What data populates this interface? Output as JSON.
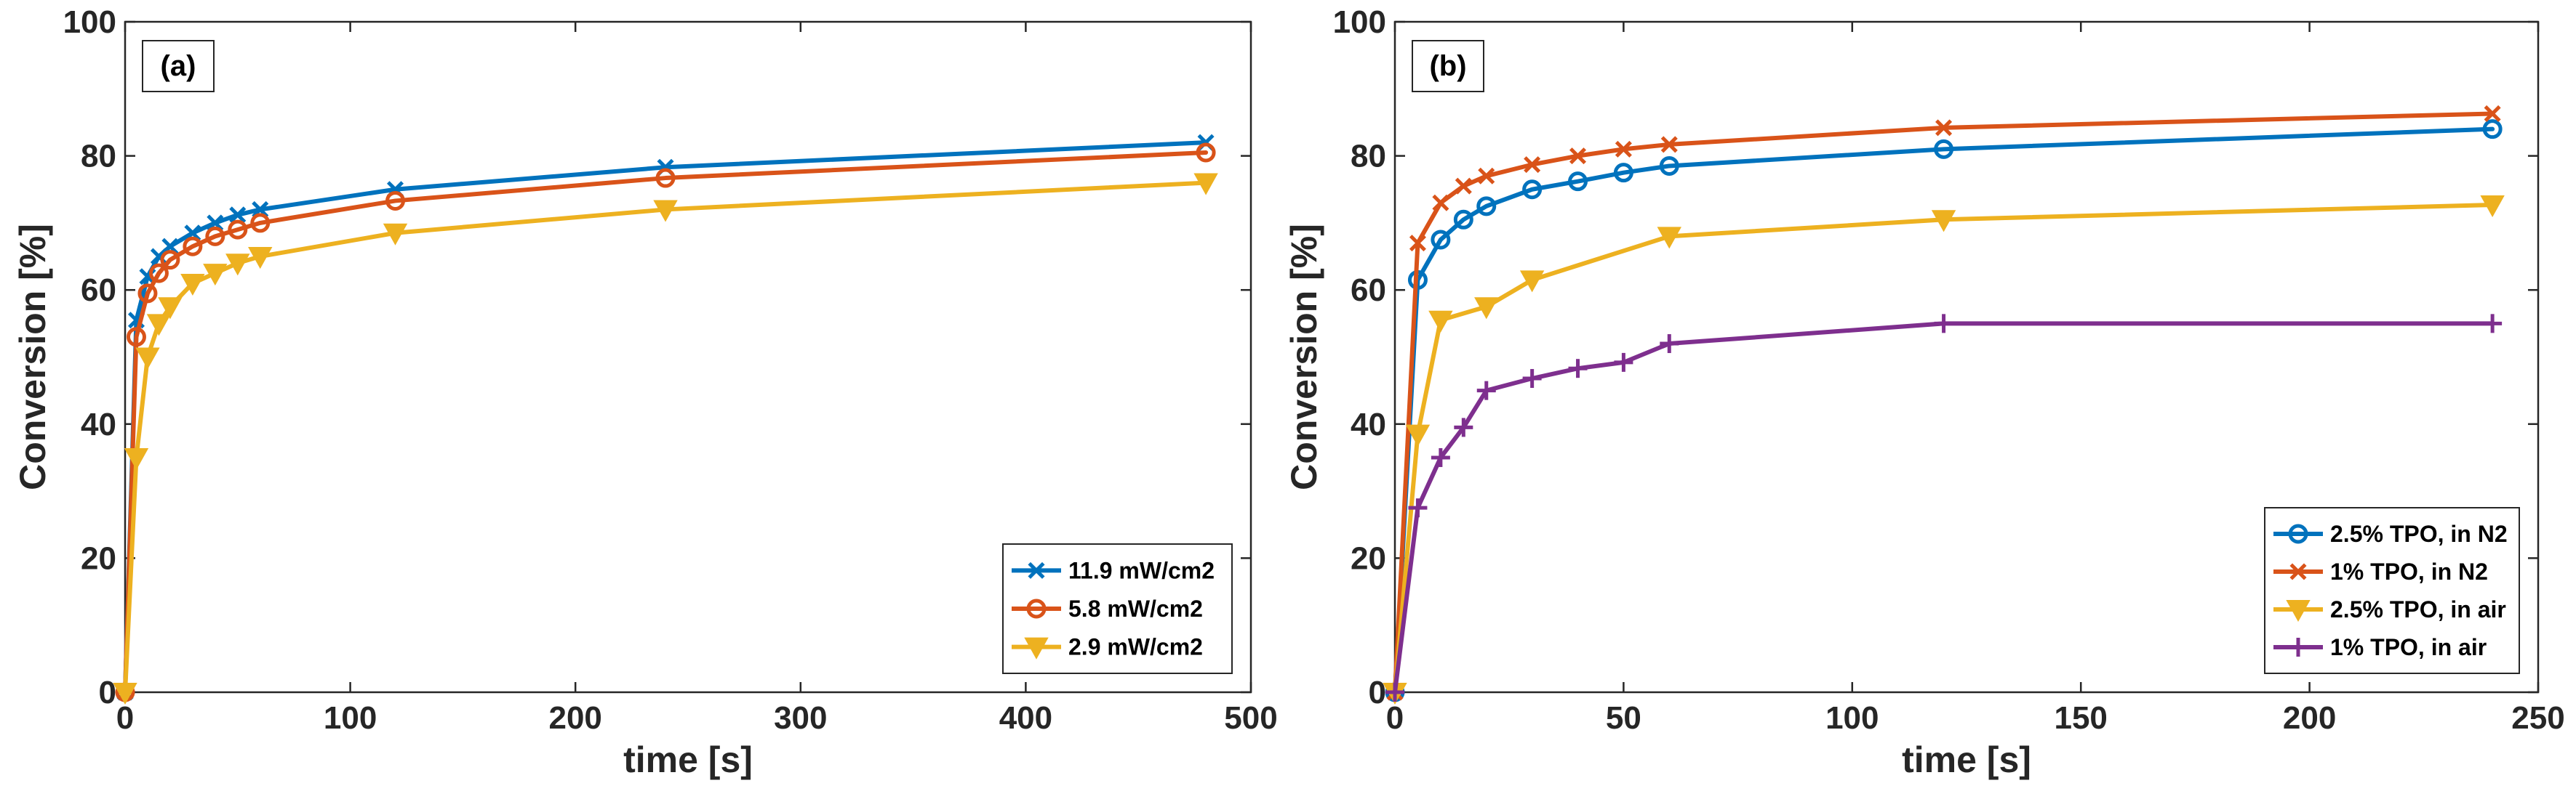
{
  "chart_data": [
    {
      "type": "line",
      "panel_label": "(a)",
      "xlabel": "time [s]",
      "ylabel": "Conversion [%]",
      "xlim": [
        0,
        500
      ],
      "ylim": [
        0,
        100
      ],
      "xticks": [
        0,
        100,
        200,
        300,
        400,
        500
      ],
      "yticks": [
        0,
        20,
        40,
        60,
        80,
        100
      ],
      "legend_position": "bottom-right",
      "series": [
        {
          "name": "11.9 mW/cm2",
          "color": "#0072BD",
          "marker": "x",
          "x": [
            0,
            5,
            10,
            15,
            20,
            30,
            40,
            50,
            60,
            120,
            240,
            480
          ],
          "y": [
            0,
            55.5,
            62,
            65,
            66.5,
            68.5,
            70,
            71.2,
            72,
            75,
            78.3,
            82
          ]
        },
        {
          "name": "5.8 mW/cm2",
          "color": "#D95319",
          "marker": "circle",
          "x": [
            0,
            5,
            10,
            15,
            20,
            30,
            40,
            50,
            60,
            120,
            240,
            480
          ],
          "y": [
            0,
            53,
            59.5,
            62.5,
            64.5,
            66.5,
            68,
            69,
            70,
            73.3,
            76.7,
            80.5
          ]
        },
        {
          "name": "2.9 mW/cm2",
          "color": "#EDB120",
          "marker": "triangle-down",
          "x": [
            0,
            5,
            10,
            15,
            20,
            30,
            40,
            50,
            60,
            120,
            240,
            480
          ],
          "y": [
            0,
            35,
            50,
            55,
            57.5,
            61,
            62.5,
            64,
            65,
            68.5,
            72,
            76
          ]
        }
      ]
    },
    {
      "type": "line",
      "panel_label": "(b)",
      "xlabel": "time [s]",
      "ylabel": "Conversion [%]",
      "xlim": [
        0,
        250
      ],
      "ylim": [
        0,
        100
      ],
      "xticks": [
        0,
        50,
        100,
        150,
        200,
        250
      ],
      "yticks": [
        0,
        20,
        40,
        60,
        80,
        100
      ],
      "legend_position": "bottom-right",
      "series": [
        {
          "name": "2.5% TPO, in N2",
          "color": "#0072BD",
          "marker": "circle",
          "x": [
            0,
            5,
            10,
            15,
            20,
            30,
            40,
            50,
            60,
            120,
            240
          ],
          "y": [
            0,
            61.5,
            67.5,
            70.5,
            72.5,
            75,
            76.2,
            77.5,
            78.5,
            81,
            84
          ]
        },
        {
          "name": "1% TPO, in N2",
          "color": "#D95319",
          "marker": "x",
          "x": [
            0,
            5,
            10,
            15,
            20,
            30,
            40,
            50,
            60,
            120,
            240
          ],
          "y": [
            0,
            67,
            73,
            75.5,
            77,
            78.7,
            80,
            81,
            81.7,
            84.2,
            86.3
          ]
        },
        {
          "name": "2.5% TPO, in air",
          "color": "#EDB120",
          "marker": "triangle-down",
          "x": [
            0,
            5,
            10,
            20,
            30,
            60,
            120,
            240
          ],
          "y": [
            0,
            38.5,
            55.5,
            57.5,
            61.5,
            68,
            70.5,
            72.7
          ]
        },
        {
          "name": "1% TPO, in air",
          "color": "#7E2F8E",
          "marker": "plus",
          "x": [
            0,
            5,
            10,
            15,
            20,
            30,
            40,
            50,
            60,
            120,
            240
          ],
          "y": [
            0,
            27.5,
            35,
            39.5,
            45,
            46.8,
            48.3,
            49.2,
            52,
            55,
            55
          ]
        }
      ]
    }
  ]
}
